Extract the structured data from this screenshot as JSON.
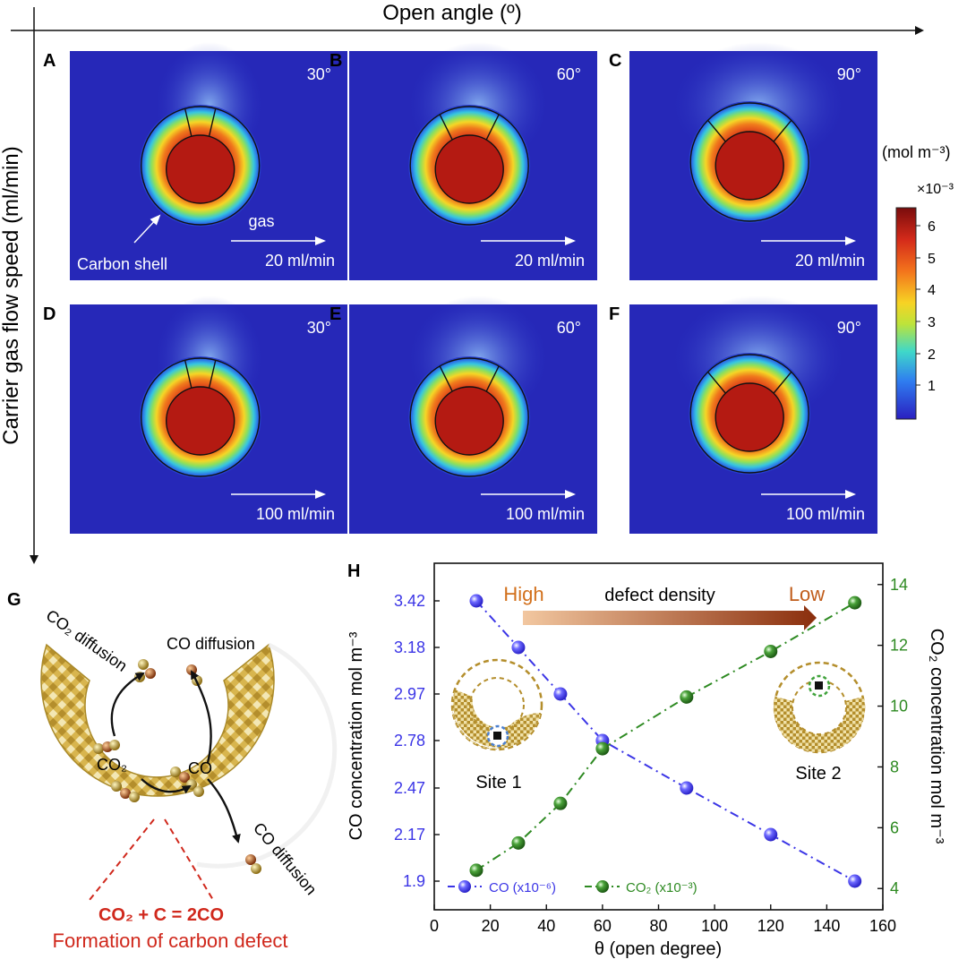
{
  "header": {
    "open_angle_label": "Open angle (º)",
    "flow_speed_label": "Carrier gas flow speed (ml/min)"
  },
  "panels": [
    {
      "letter": "A",
      "angle": "30°",
      "flow": "20 ml/min",
      "gas_label": "gas",
      "shell_label": "Carbon shell"
    },
    {
      "letter": "B",
      "angle": "60°",
      "flow": "20 ml/min"
    },
    {
      "letter": "C",
      "angle": "90°",
      "flow": "20 ml/min"
    },
    {
      "letter": "D",
      "angle": "30°",
      "flow": "100 ml/min"
    },
    {
      "letter": "E",
      "angle": "60°",
      "flow": "100 ml/min"
    },
    {
      "letter": "F",
      "angle": "90°",
      "flow": "100 ml/min"
    }
  ],
  "colorbar": {
    "unit": "(mol m⁻³)",
    "multiplier": "×10⁻³",
    "ticks": [
      "6",
      "5",
      "4",
      "3",
      "2",
      "1"
    ],
    "colors": [
      "#7a0c0c",
      "#d42a1a",
      "#f3741c",
      "#f7d324",
      "#bde33a",
      "#3fd8c9",
      "#2f7df0",
      "#2a1fc0"
    ]
  },
  "panel_g": {
    "letter": "G",
    "co2_diffusion_top": "CO₂ diffusion",
    "co_diffusion_top": "CO diffusion",
    "co2_label": "CO₂",
    "co_label": "CO",
    "co_diffusion_bottom": "CO diffusion",
    "equation": "CO₂ + C = 2CO",
    "caption": "Formation of carbon defect",
    "shell_color": "#c8a53c"
  },
  "chart_data": {
    "type": "line",
    "letter": "H",
    "x": [
      15,
      30,
      45,
      60,
      90,
      120,
      150
    ],
    "xlabel": "θ (open degree)",
    "xlim": [
      0,
      160
    ],
    "xticks": [
      "0",
      "20",
      "40",
      "60",
      "80",
      "100",
      "120",
      "140",
      "160"
    ],
    "ylabel_left": "CO concentration mol m⁻³",
    "ylabel_right": "CO₂ concentration mol m⁻³",
    "yticks_left": [
      "3.42",
      "3.18",
      "2.97",
      "2.78",
      "2.47",
      "2.17",
      "1.9"
    ],
    "yticks_right": [
      "14",
      "12",
      "10",
      "8",
      "6",
      "4"
    ],
    "ylim_right": [
      3.3,
      14.7
    ],
    "series": [
      {
        "name": "CO (x10⁻⁶)",
        "axis": "left",
        "color": "#3b35e6",
        "values": [
          3.42,
          3.18,
          2.97,
          2.78,
          2.47,
          2.17,
          1.9
        ]
      },
      {
        "name": "CO₂ (x10⁻³)",
        "axis": "right",
        "color": "#2e8a22",
        "values": [
          4.6,
          5.5,
          6.8,
          8.6,
          10.3,
          11.8,
          13.4
        ]
      }
    ],
    "annotations": {
      "high": "High",
      "defect_density": "defect density",
      "low": "Low",
      "site1": "Site 1",
      "site2": "Site 2"
    },
    "grid": false,
    "legend_position": "bottom-left"
  }
}
